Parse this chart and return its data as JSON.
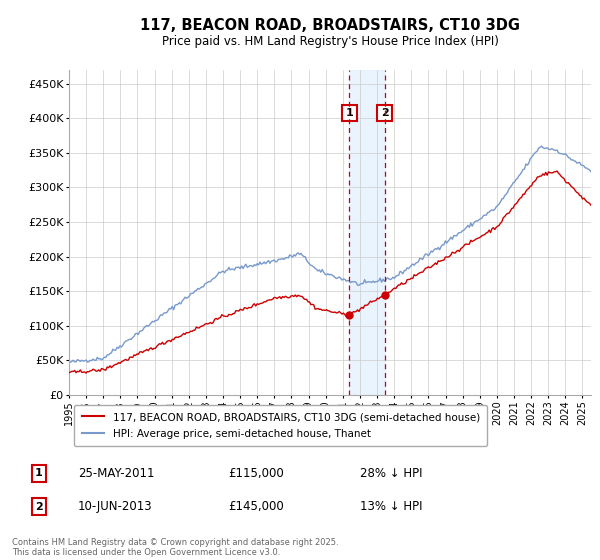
{
  "title": "117, BEACON ROAD, BROADSTAIRS, CT10 3DG",
  "subtitle": "Price paid vs. HM Land Registry's House Price Index (HPI)",
  "ylabel_ticks": [
    "£0",
    "£50K",
    "£100K",
    "£150K",
    "£200K",
    "£250K",
    "£300K",
    "£350K",
    "£400K",
    "£450K"
  ],
  "ytick_vals": [
    0,
    50000,
    100000,
    150000,
    200000,
    250000,
    300000,
    350000,
    400000,
    450000
  ],
  "ylim": [
    0,
    470000
  ],
  "xlim_start": 1995.0,
  "xlim_end": 2025.5,
  "red_line_color": "#cc0000",
  "blue_line_color": "#7799cc",
  "transaction1_x": 2011.38,
  "transaction1_y": 115000,
  "transaction2_x": 2013.44,
  "transaction2_y": 145000,
  "annotation_bg": "#ddeeff",
  "annotation_border": "#cc0000",
  "legend_label_red": "117, BEACON ROAD, BROADSTAIRS, CT10 3DG (semi-detached house)",
  "legend_label_blue": "HPI: Average price, semi-detached house, Thanet",
  "table_row1": [
    "1",
    "25-MAY-2011",
    "£115,000",
    "28% ↓ HPI"
  ],
  "table_row2": [
    "2",
    "10-JUN-2013",
    "£145,000",
    "13% ↓ HPI"
  ],
  "footer": "Contains HM Land Registry data © Crown copyright and database right 2025.\nThis data is licensed under the Open Government Licence v3.0.",
  "background_color": "#ffffff",
  "grid_color": "#cccccc"
}
